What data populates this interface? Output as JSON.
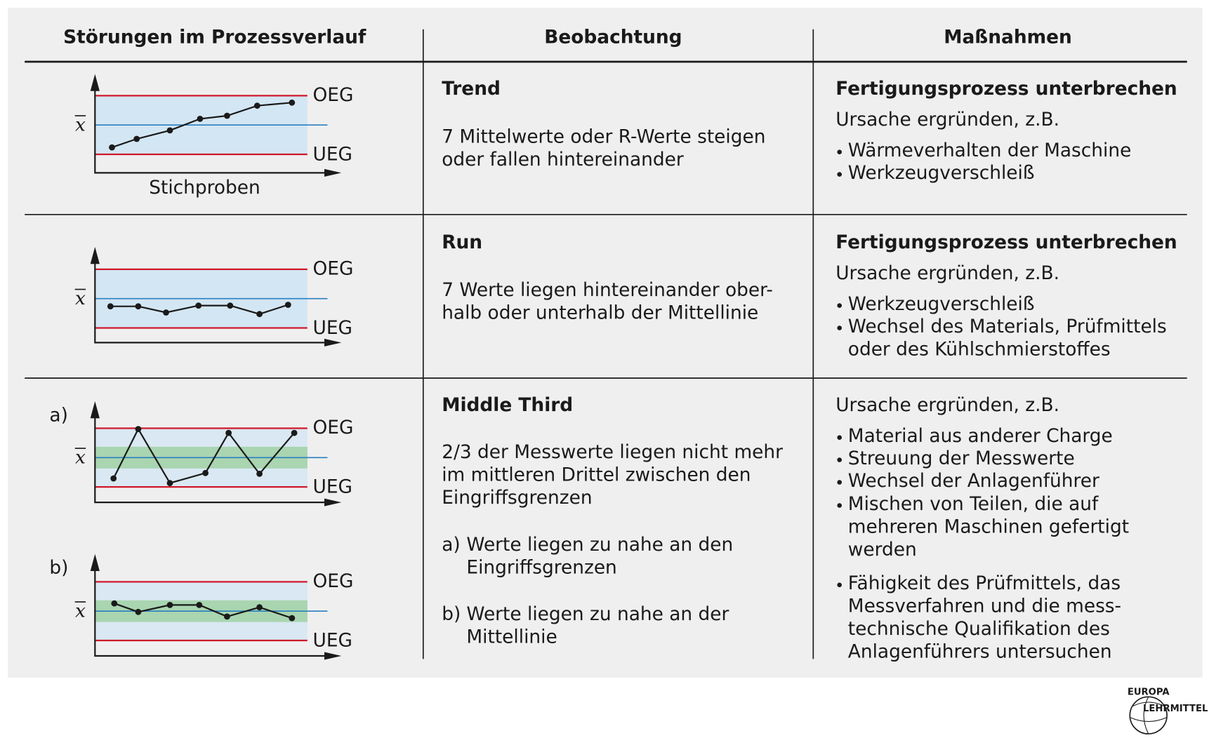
{
  "header": {
    "columns": [
      "Störungen im Prozessverlauf",
      "Beobachtung",
      "Maßnahmen"
    ]
  },
  "rows": [
    {
      "chart": {
        "upper": "OEG",
        "lower": "UEG",
        "mean": "x",
        "x_label": "Stichproben"
      },
      "observation": {
        "title": "Trend",
        "lines": [
          "7 Mittelwerte oder R-Werte steigen",
          "oder fallen hintereinander"
        ]
      },
      "measures": {
        "title": "Fertigungsprozess unterbrechen",
        "intro": "Ursache ergründen, z.B.",
        "bullets": [
          [
            "Wärmeverhalten der Maschine"
          ],
          [
            "Werkzeugverschleiß"
          ]
        ]
      }
    },
    {
      "chart": {
        "upper": "OEG",
        "lower": "UEG",
        "mean": "x"
      },
      "observation": {
        "title": "Run",
        "lines": [
          "7 Werte liegen hintereinander ober-",
          "halb oder unterhalb der Mittellinie"
        ]
      },
      "measures": {
        "title": "Fertigungsprozess unterbrechen",
        "intro": "Ursache ergründen, z.B.",
        "bullets": [
          [
            "Werkzeugverschleiß"
          ],
          [
            "Wechsel des Materials, Prüfmittels",
            "oder des Kühlschmierstoffes"
          ]
        ]
      }
    },
    {
      "charts": [
        {
          "label": "a)",
          "upper": "OEG",
          "lower": "UEG",
          "mean": "x"
        },
        {
          "label": "b)",
          "upper": "OEG",
          "lower": "UEG",
          "mean": "x"
        }
      ],
      "observation": {
        "title": "Middle Third",
        "lines": [
          "2/3 der Messwerte liegen nicht mehr",
          "im mittleren Drittel zwischen den",
          "Eingriffsgrenzen"
        ],
        "cases": [
          {
            "label": "a)",
            "lines": [
              "Werte liegen zu nahe an den",
              "Eingriffsgrenzen"
            ]
          },
          {
            "label": "b)",
            "lines": [
              "Werte liegen zu nahe an der",
              "Mittellinie"
            ]
          }
        ]
      },
      "measures": {
        "intro": "Ursache ergründen, z.B.",
        "bullets": [
          [
            "Material aus anderer Charge"
          ],
          [
            "Streuung der Messwerte"
          ],
          [
            "Wechsel der Anlagenführer"
          ],
          [
            "Mischen von Teilen, die auf",
            "mehreren Maschinen gefertigt",
            "werden"
          ],
          [
            "Fähigkeit des Prüfmittels, das",
            "Messverfahren und die mess-",
            "technische Qualifikation des",
            "Anlagenführers untersuchen"
          ]
        ]
      }
    }
  ],
  "logo": {
    "top": "EUROPA",
    "bottom": "LEHRMITTEL"
  }
}
